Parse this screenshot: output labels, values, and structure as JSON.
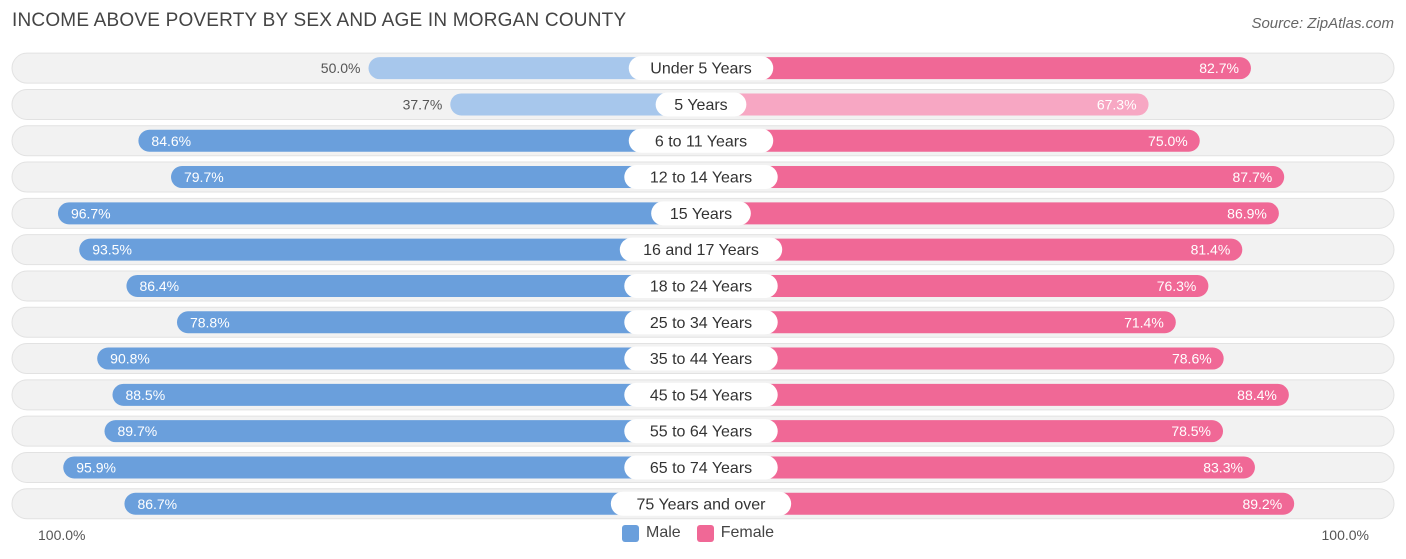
{
  "title": "INCOME ABOVE POVERTY BY SEX AND AGE IN MORGAN COUNTY",
  "source": "Source: ZipAtlas.com",
  "axis": {
    "left_label": "100.0%",
    "right_label": "100.0%"
  },
  "legend": {
    "male_label": "Male",
    "female_label": "Female",
    "male_color": "#6a9fdc",
    "female_color": "#f06896"
  },
  "chart_data": {
    "type": "bar",
    "orientation": "horizontal-diverging",
    "title": "INCOME ABOVE POVERTY BY SEX AND AGE IN MORGAN COUNTY",
    "xlim": [
      0,
      100
    ],
    "categories": [
      "Under 5 Years",
      "5 Years",
      "6 to 11 Years",
      "12 to 14 Years",
      "15 Years",
      "16 and 17 Years",
      "18 to 24 Years",
      "25 to 34 Years",
      "35 to 44 Years",
      "45 to 54 Years",
      "55 to 64 Years",
      "65 to 74 Years",
      "75 Years and over"
    ],
    "series": [
      {
        "name": "Male",
        "values": [
          50.0,
          37.7,
          84.6,
          79.7,
          96.7,
          93.5,
          86.4,
          78.8,
          90.8,
          88.5,
          89.7,
          95.9,
          86.7
        ],
        "labels": [
          "50.0%",
          "37.7%",
          "84.6%",
          "79.7%",
          "96.7%",
          "93.5%",
          "86.4%",
          "78.8%",
          "90.8%",
          "88.5%",
          "89.7%",
          "95.9%",
          "86.7%"
        ]
      },
      {
        "name": "Female",
        "values": [
          82.7,
          67.3,
          75.0,
          87.7,
          86.9,
          81.4,
          76.3,
          71.4,
          78.6,
          88.4,
          78.5,
          83.3,
          89.2
        ],
        "labels": [
          "82.7%",
          "67.3%",
          "75.0%",
          "87.7%",
          "86.9%",
          "81.4%",
          "76.3%",
          "71.4%",
          "78.6%",
          "88.4%",
          "78.5%",
          "83.3%",
          "89.2%"
        ]
      }
    ]
  }
}
